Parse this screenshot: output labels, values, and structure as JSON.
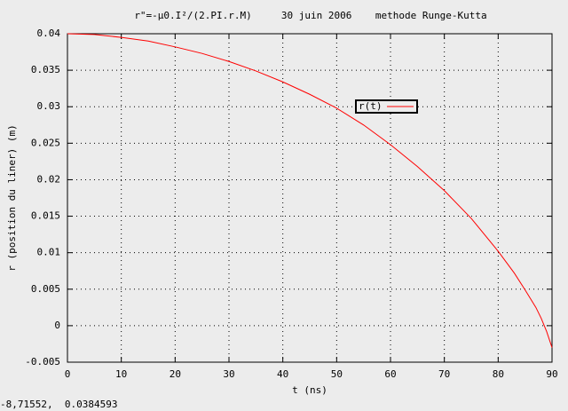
{
  "chart_data": {
    "type": "line",
    "title": "r\"=-µ0.I²/(2.PI.r.M)     30 juin 2006    methode Runge-Kutta",
    "x_label": "t (ns)",
    "y_label": "r (position du liner) (m)",
    "x": [
      0,
      5,
      10,
      15,
      20,
      25,
      30,
      35,
      40,
      45,
      50,
      55,
      60,
      65,
      70,
      75,
      80,
      83,
      85,
      87,
      88,
      89,
      90
    ],
    "series": [
      {
        "name": "r(t)",
        "color": "#ff0000",
        "values": [
          0.04,
          0.0399,
          0.0395,
          0.039,
          0.0382,
          0.0373,
          0.0362,
          0.0349,
          0.0334,
          0.0317,
          0.0298,
          0.0275,
          0.0248,
          0.0218,
          0.0185,
          0.0147,
          0.0102,
          0.0072,
          0.0049,
          0.0025,
          0.001,
          -0.0008,
          -0.003
        ]
      }
    ],
    "xlim": [
      0,
      90
    ],
    "xticks": [
      0,
      10,
      20,
      30,
      40,
      50,
      60,
      70,
      80,
      90
    ],
    "ylim": [
      -0.005,
      0.04
    ],
    "yticks": [
      -0.005,
      0,
      0.005,
      0.01,
      0.015,
      0.02,
      0.025,
      0.03,
      0.035,
      0.04
    ],
    "grid": true
  },
  "status": "-8,71552,  0.0384593"
}
